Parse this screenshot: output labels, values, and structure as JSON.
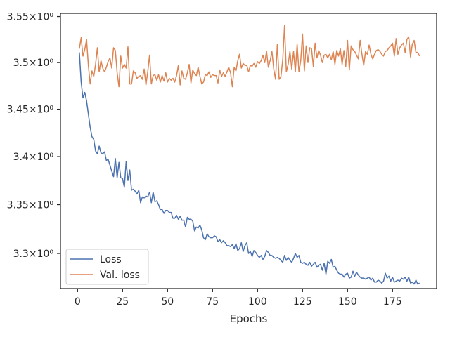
{
  "chart_data": {
    "type": "line",
    "xlabel": "Epochs",
    "ylabel": "",
    "title": "",
    "xlim": [
      -9.5,
      199.5
    ],
    "ylim": [
      3.2645,
      3.5535
    ],
    "y_scale": "log",
    "x_ticks": [
      0,
      25,
      50,
      75,
      100,
      125,
      150,
      175
    ],
    "x_tick_labels": [
      "0",
      "25",
      "50",
      "75",
      "100",
      "125",
      "150",
      "175"
    ],
    "y_ticks": [
      3.3,
      3.35,
      3.4,
      3.45,
      3.5,
      3.55
    ],
    "y_tick_labels": [
      "3.3×10⁰",
      "3.35×10⁰",
      "3.4×10⁰",
      "3.45×10⁰",
      "3.5×10⁰",
      "3.55×10⁰"
    ],
    "grid": false,
    "legend_position": "lower-left",
    "series": [
      {
        "name": "Loss",
        "color": "#4c72b0",
        "x": [
          1,
          2,
          3,
          4,
          5,
          6,
          7,
          8,
          9,
          10,
          11,
          12,
          13,
          14,
          15,
          16,
          17,
          18,
          19,
          20,
          21,
          22,
          23,
          24,
          25,
          26,
          27,
          28,
          29,
          30,
          31,
          32,
          33,
          34,
          35,
          36,
          37,
          38,
          39,
          40,
          41,
          42,
          43,
          44,
          45,
          46,
          47,
          48,
          49,
          50,
          51,
          52,
          53,
          54,
          55,
          56,
          57,
          58,
          59,
          60,
          61,
          62,
          63,
          64,
          65,
          66,
          67,
          68,
          69,
          70,
          71,
          72,
          73,
          74,
          75,
          76,
          77,
          78,
          79,
          80,
          81,
          82,
          83,
          84,
          85,
          86,
          87,
          88,
          89,
          90,
          91,
          92,
          93,
          94,
          95,
          96,
          97,
          98,
          99,
          100,
          101,
          102,
          103,
          104,
          105,
          106,
          107,
          108,
          109,
          110,
          111,
          112,
          113,
          114,
          115,
          116,
          117,
          118,
          119,
          120,
          121,
          122,
          123,
          124,
          125,
          126,
          127,
          128,
          129,
          130,
          131,
          132,
          133,
          134,
          135,
          136,
          137,
          138,
          139,
          140,
          141,
          142,
          143,
          144,
          145,
          146,
          147,
          148,
          149,
          150,
          151,
          152,
          153,
          154,
          155,
          156,
          157,
          158,
          159,
          160,
          161,
          162,
          163,
          164,
          165,
          166,
          167,
          168,
          169,
          170,
          171,
          172,
          173,
          174,
          175,
          176,
          177,
          178,
          179,
          180,
          181,
          182,
          183,
          184,
          185,
          186,
          187,
          188,
          189,
          190
        ],
        "values": [
          3.511,
          3.479,
          3.462,
          3.468,
          3.459,
          3.445,
          3.431,
          3.421,
          3.418,
          3.406,
          3.403,
          3.411,
          3.404,
          3.403,
          3.405,
          3.396,
          3.397,
          3.391,
          3.385,
          3.379,
          3.398,
          3.378,
          3.394,
          3.378,
          3.377,
          3.368,
          3.395,
          3.375,
          3.386,
          3.365,
          3.366,
          3.364,
          3.361,
          3.365,
          3.352,
          3.358,
          3.357,
          3.359,
          3.358,
          3.363,
          3.352,
          3.363,
          3.353,
          3.354,
          3.35,
          3.345,
          3.345,
          3.341,
          3.344,
          3.344,
          3.342,
          3.342,
          3.336,
          3.336,
          3.339,
          3.335,
          3.338,
          3.334,
          3.334,
          3.327,
          3.337,
          3.335,
          3.335,
          3.333,
          3.323,
          3.327,
          3.326,
          3.329,
          3.324,
          3.316,
          3.314,
          3.32,
          3.317,
          3.316,
          3.316,
          3.318,
          3.317,
          3.312,
          3.314,
          3.311,
          3.313,
          3.311,
          3.308,
          3.308,
          3.307,
          3.309,
          3.305,
          3.31,
          3.303,
          3.305,
          3.311,
          3.302,
          3.308,
          3.311,
          3.3,
          3.302,
          3.297,
          3.303,
          3.301,
          3.298,
          3.296,
          3.298,
          3.294,
          3.297,
          3.303,
          3.301,
          3.298,
          3.298,
          3.296,
          3.295,
          3.296,
          3.295,
          3.293,
          3.291,
          3.298,
          3.293,
          3.296,
          3.293,
          3.291,
          3.295,
          3.3,
          3.296,
          3.298,
          3.291,
          3.29,
          3.291,
          3.289,
          3.288,
          3.291,
          3.287,
          3.289,
          3.291,
          3.286,
          3.288,
          3.289,
          3.283,
          3.29,
          3.279,
          3.292,
          3.29,
          3.294,
          3.286,
          3.287,
          3.283,
          3.28,
          3.279,
          3.279,
          3.276,
          3.279,
          3.28,
          3.275,
          3.276,
          3.282,
          3.277,
          3.281,
          3.278,
          3.276,
          3.275,
          3.275,
          3.274,
          3.275,
          3.276,
          3.273,
          3.275,
          3.271,
          3.271,
          3.273,
          3.272,
          3.27,
          3.272,
          3.28,
          3.275,
          3.277,
          3.272,
          3.276,
          3.271,
          3.272,
          3.273,
          3.272,
          3.275,
          3.274,
          3.276,
          3.272,
          3.276,
          3.27,
          3.271,
          3.269,
          3.273,
          3.269,
          3.27
        ]
      },
      {
        "name": "Val. loss",
        "color": "#dd8452",
        "x": [
          1,
          2,
          3,
          4,
          5,
          6,
          7,
          8,
          9,
          10,
          11,
          12,
          13,
          14,
          15,
          16,
          17,
          18,
          19,
          20,
          21,
          22,
          23,
          24,
          25,
          26,
          27,
          28,
          29,
          30,
          31,
          32,
          33,
          34,
          35,
          36,
          37,
          38,
          39,
          40,
          41,
          42,
          43,
          44,
          45,
          46,
          47,
          48,
          49,
          50,
          51,
          52,
          53,
          54,
          55,
          56,
          57,
          58,
          59,
          60,
          61,
          62,
          63,
          64,
          65,
          66,
          67,
          68,
          69,
          70,
          71,
          72,
          73,
          74,
          75,
          76,
          77,
          78,
          79,
          80,
          81,
          82,
          83,
          84,
          85,
          86,
          87,
          88,
          89,
          90,
          91,
          92,
          93,
          94,
          95,
          96,
          97,
          98,
          99,
          100,
          101,
          102,
          103,
          104,
          105,
          106,
          107,
          108,
          109,
          110,
          111,
          112,
          113,
          114,
          115,
          116,
          117,
          118,
          119,
          120,
          121,
          122,
          123,
          124,
          125,
          126,
          127,
          128,
          129,
          130,
          131,
          132,
          133,
          134,
          135,
          136,
          137,
          138,
          139,
          140,
          141,
          142,
          143,
          144,
          145,
          146,
          147,
          148,
          149,
          150,
          151,
          152,
          153,
          154,
          155,
          156,
          157,
          158,
          159,
          160,
          161,
          162,
          163,
          164,
          165,
          166,
          167,
          168,
          169,
          170,
          171,
          172,
          173,
          174,
          175,
          176,
          177,
          178,
          179,
          180,
          181,
          182,
          183,
          184,
          185,
          186,
          187,
          188,
          189,
          190
        ],
        "values": [
          3.515,
          3.527,
          3.507,
          3.514,
          3.525,
          3.497,
          3.477,
          3.491,
          3.485,
          3.498,
          3.516,
          3.49,
          3.502,
          3.494,
          3.49,
          3.495,
          3.501,
          3.505,
          3.494,
          3.516,
          3.513,
          3.489,
          3.474,
          3.507,
          3.494,
          3.498,
          3.494,
          3.517,
          3.477,
          3.477,
          3.491,
          3.489,
          3.483,
          3.485,
          3.486,
          3.482,
          3.493,
          3.476,
          3.49,
          3.508,
          3.477,
          3.486,
          3.487,
          3.481,
          3.487,
          3.479,
          3.486,
          3.48,
          3.489,
          3.479,
          3.483,
          3.481,
          3.483,
          3.479,
          3.486,
          3.497,
          3.476,
          3.491,
          3.483,
          3.482,
          3.489,
          3.498,
          3.478,
          3.492,
          3.488,
          3.486,
          3.495,
          3.485,
          3.477,
          3.479,
          3.487,
          3.486,
          3.49,
          3.484,
          3.487,
          3.486,
          3.486,
          3.478,
          3.492,
          3.485,
          3.489,
          3.485,
          3.49,
          3.495,
          3.489,
          3.474,
          3.495,
          3.491,
          3.502,
          3.509,
          3.494,
          3.499,
          3.497,
          3.497,
          3.49,
          3.497,
          3.496,
          3.499,
          3.495,
          3.501,
          3.499,
          3.502,
          3.508,
          3.5,
          3.512,
          3.495,
          3.502,
          3.512,
          3.493,
          3.482,
          3.52,
          3.482,
          3.485,
          3.503,
          3.54,
          3.49,
          3.498,
          3.512,
          3.493,
          3.512,
          3.49,
          3.52,
          3.49,
          3.502,
          3.531,
          3.491,
          3.518,
          3.5,
          3.516,
          3.515,
          3.496,
          3.521,
          3.505,
          3.513,
          3.508,
          3.5,
          3.508,
          3.509,
          3.505,
          3.509,
          3.503,
          3.512,
          3.498,
          3.513,
          3.507,
          3.515,
          3.498,
          3.513,
          3.496,
          3.524,
          3.492,
          3.518,
          3.514,
          3.512,
          3.508,
          3.504,
          3.524,
          3.509,
          3.497,
          3.512,
          3.509,
          3.519,
          3.509,
          3.504,
          3.509,
          3.513,
          3.514,
          3.512,
          3.509,
          3.507,
          3.512,
          3.513,
          3.516,
          3.518,
          3.521,
          3.507,
          3.526,
          3.509,
          3.516,
          3.519,
          3.521,
          3.511,
          3.525,
          3.528,
          3.506,
          3.52,
          3.524,
          3.511,
          3.511,
          3.507
        ]
      }
    ]
  }
}
